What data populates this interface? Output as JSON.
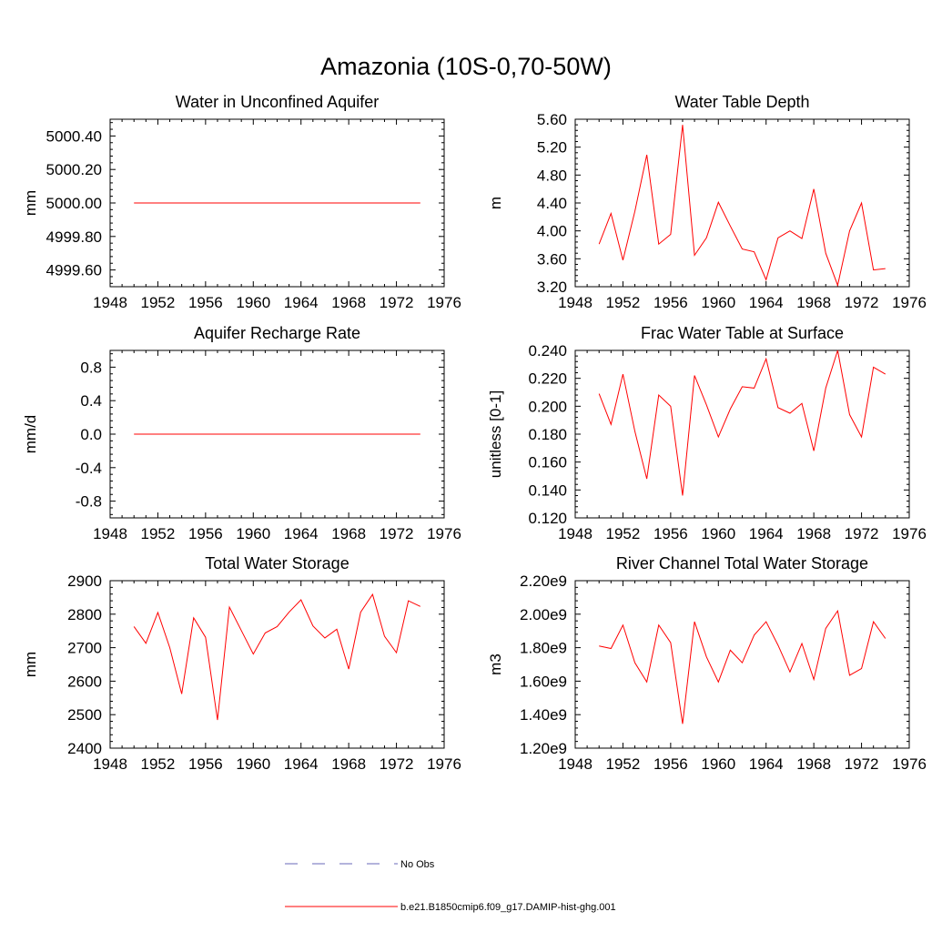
{
  "title": "Amazonia (10S-0,70-50W)",
  "legend": [
    {
      "label": "No Obs",
      "color": "#6a6ab8",
      "dash": true
    },
    {
      "label": "b.e21.B1850cmip6.f09_g17.DAMIP-hist-ghg.001",
      "color": "#ff0000",
      "dash": false
    }
  ],
  "chart_data": [
    {
      "type": "line",
      "title": "Water in Unconfined Aquifer",
      "ylabel": "mm",
      "xlim": [
        1948,
        1976
      ],
      "xticks": [
        1948,
        1952,
        1956,
        1960,
        1964,
        1968,
        1972,
        1976
      ],
      "ylim": [
        4999.5,
        5000.5
      ],
      "yticks": [
        4999.6,
        4999.8,
        5000.0,
        5000.2,
        5000.4
      ],
      "ytick_labels": [
        "4999.60",
        "4999.80",
        "5000.00",
        "5000.20",
        "5000.40"
      ],
      "x": [
        1950,
        1951,
        1952,
        1953,
        1954,
        1955,
        1956,
        1957,
        1958,
        1959,
        1960,
        1961,
        1962,
        1963,
        1964,
        1965,
        1966,
        1967,
        1968,
        1969,
        1970,
        1971,
        1972,
        1973,
        1974
      ],
      "series": [
        {
          "values": [
            5000,
            5000,
            5000,
            5000,
            5000,
            5000,
            5000,
            5000,
            5000,
            5000,
            5000,
            5000,
            5000,
            5000,
            5000,
            5000,
            5000,
            5000,
            5000,
            5000,
            5000,
            5000,
            5000,
            5000,
            5000
          ]
        }
      ]
    },
    {
      "type": "line",
      "title": "Water Table Depth",
      "ylabel": "m",
      "xlim": [
        1948,
        1976
      ],
      "xticks": [
        1948,
        1952,
        1956,
        1960,
        1964,
        1968,
        1972,
        1976
      ],
      "ylim": [
        3.2,
        5.6
      ],
      "yticks": [
        3.2,
        3.6,
        4.0,
        4.4,
        4.8,
        5.2,
        5.6
      ],
      "ytick_labels": [
        "3.20",
        "3.60",
        "4.00",
        "4.40",
        "4.80",
        "5.20",
        "5.60"
      ],
      "x": [
        1950,
        1951,
        1952,
        1953,
        1954,
        1955,
        1956,
        1957,
        1958,
        1959,
        1960,
        1961,
        1962,
        1963,
        1964,
        1965,
        1966,
        1967,
        1968,
        1969,
        1970,
        1971,
        1972,
        1973,
        1974
      ],
      "series": [
        {
          "values": [
            3.81,
            4.25,
            3.58,
            4.28,
            5.09,
            3.81,
            3.95,
            5.52,
            3.65,
            3.9,
            4.41,
            4.07,
            3.74,
            3.7,
            3.3,
            3.9,
            4.0,
            3.89,
            4.6,
            3.68,
            3.22,
            4.0,
            4.4,
            3.44,
            3.46
          ]
        }
      ]
    },
    {
      "type": "line",
      "title": "Aquifer Recharge Rate",
      "ylabel": "mm/d",
      "xlim": [
        1948,
        1976
      ],
      "xticks": [
        1948,
        1952,
        1956,
        1960,
        1964,
        1968,
        1972,
        1976
      ],
      "ylim": [
        -1.0,
        1.0
      ],
      "yticks": [
        -0.8,
        -0.4,
        0.0,
        0.4,
        0.8
      ],
      "ytick_labels": [
        "-0.8",
        "-0.4",
        "0.0",
        "0.4",
        "0.8"
      ],
      "x": [
        1950,
        1951,
        1952,
        1953,
        1954,
        1955,
        1956,
        1957,
        1958,
        1959,
        1960,
        1961,
        1962,
        1963,
        1964,
        1965,
        1966,
        1967,
        1968,
        1969,
        1970,
        1971,
        1972,
        1973,
        1974
      ],
      "series": [
        {
          "values": [
            0,
            0,
            0,
            0,
            0,
            0,
            0,
            0,
            0,
            0,
            0,
            0,
            0,
            0,
            0,
            0,
            0,
            0,
            0,
            0,
            0,
            0,
            0,
            0,
            0
          ]
        }
      ]
    },
    {
      "type": "line",
      "title": "Frac Water Table at Surface",
      "ylabel": "unitless [0-1]",
      "xlim": [
        1948,
        1976
      ],
      "xticks": [
        1948,
        1952,
        1956,
        1960,
        1964,
        1968,
        1972,
        1976
      ],
      "ylim": [
        0.12,
        0.24
      ],
      "yticks": [
        0.12,
        0.14,
        0.16,
        0.18,
        0.2,
        0.22,
        0.24
      ],
      "ytick_labels": [
        "0.120",
        "0.140",
        "0.160",
        "0.180",
        "0.200",
        "0.220",
        "0.240"
      ],
      "x": [
        1950,
        1951,
        1952,
        1953,
        1954,
        1955,
        1956,
        1957,
        1958,
        1959,
        1960,
        1961,
        1962,
        1963,
        1964,
        1965,
        1966,
        1967,
        1968,
        1969,
        1970,
        1971,
        1972,
        1973,
        1974
      ],
      "series": [
        {
          "values": [
            0.209,
            0.187,
            0.223,
            0.182,
            0.148,
            0.208,
            0.2,
            0.136,
            0.222,
            0.201,
            0.178,
            0.198,
            0.214,
            0.213,
            0.234,
            0.199,
            0.195,
            0.202,
            0.168,
            0.213,
            0.24,
            0.194,
            0.178,
            0.228,
            0.223
          ]
        }
      ]
    },
    {
      "type": "line",
      "title": "Total Water Storage",
      "ylabel": "mm",
      "xlim": [
        1948,
        1976
      ],
      "xticks": [
        1948,
        1952,
        1956,
        1960,
        1964,
        1968,
        1972,
        1976
      ],
      "ylim": [
        2400,
        2900
      ],
      "yticks": [
        2400,
        2500,
        2600,
        2700,
        2800,
        2900
      ],
      "ytick_labels": [
        "2400",
        "2500",
        "2600",
        "2700",
        "2800",
        "2900"
      ],
      "x": [
        1950,
        1951,
        1952,
        1953,
        1954,
        1955,
        1956,
        1957,
        1958,
        1959,
        1960,
        1961,
        1962,
        1963,
        1964,
        1965,
        1966,
        1967,
        1968,
        1969,
        1970,
        1971,
        1972,
        1973,
        1974
      ],
      "series": [
        {
          "values": [
            2763,
            2713,
            2805,
            2700,
            2562,
            2789,
            2731,
            2484,
            2821,
            2751,
            2681,
            2744,
            2763,
            2806,
            2843,
            2765,
            2729,
            2755,
            2636,
            2806,
            2859,
            2734,
            2685,
            2840,
            2823
          ]
        }
      ]
    },
    {
      "type": "line",
      "title": "River Channel Total Water Storage",
      "ylabel": "m3",
      "xlim": [
        1948,
        1976
      ],
      "xticks": [
        1948,
        1952,
        1956,
        1960,
        1964,
        1968,
        1972,
        1976
      ],
      "ylim": [
        1200000000.0,
        2200000000.0
      ],
      "yticks": [
        1200000000.0,
        1400000000.0,
        1600000000.0,
        1800000000.0,
        2000000000.0,
        2200000000.0
      ],
      "ytick_labels": [
        "1.20e9",
        "1.40e9",
        "1.60e9",
        "1.80e9",
        "2.00e9",
        "2.20e9"
      ],
      "x": [
        1950,
        1951,
        1952,
        1953,
        1954,
        1955,
        1956,
        1957,
        1958,
        1959,
        1960,
        1961,
        1962,
        1963,
        1964,
        1965,
        1966,
        1967,
        1968,
        1969,
        1970,
        1971,
        1972,
        1973,
        1974
      ],
      "series": [
        {
          "values": [
            1810000000.0,
            1795000000.0,
            1935000000.0,
            1710000000.0,
            1595000000.0,
            1935000000.0,
            1830000000.0,
            1345000000.0,
            1955000000.0,
            1745000000.0,
            1595000000.0,
            1785000000.0,
            1710000000.0,
            1875000000.0,
            1955000000.0,
            1815000000.0,
            1655000000.0,
            1825000000.0,
            1610000000.0,
            1915000000.0,
            2020000000.0,
            1635000000.0,
            1675000000.0,
            1955000000.0,
            1855000000.0
          ]
        }
      ]
    }
  ]
}
